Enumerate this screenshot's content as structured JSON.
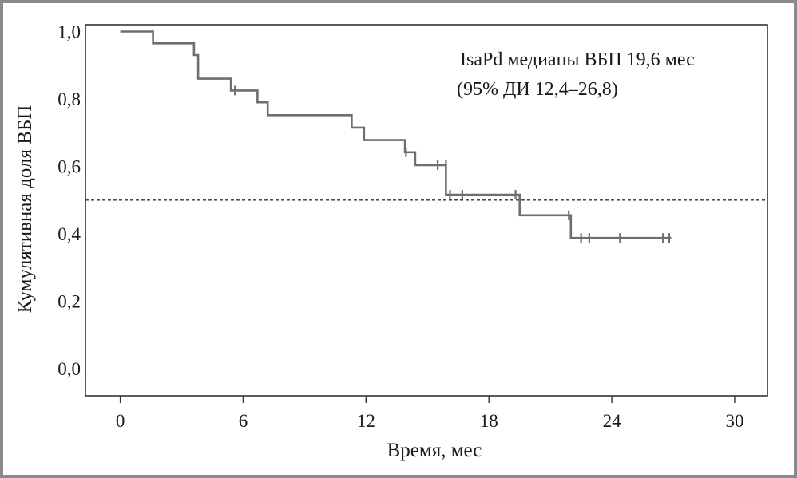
{
  "chart_data": {
    "type": "line",
    "subtype": "kaplan-meier",
    "xlabel": "Время, мес",
    "ylabel": "Кумулятивная доля ВБП",
    "xlim": [
      -1.7,
      31.6
    ],
    "ylim": [
      -0.08,
      1.02
    ],
    "x_ticks": [
      0,
      6,
      12,
      18,
      24,
      30
    ],
    "x_tick_labels": [
      "0",
      "6",
      "12",
      "18",
      "24",
      "30"
    ],
    "y_ticks": [
      0.0,
      0.2,
      0.4,
      0.6,
      0.8,
      1.0
    ],
    "y_tick_labels": [
      "0,0",
      "0,2",
      "0,4",
      "0,6",
      "0,8",
      "1,0"
    ],
    "reference_line": {
      "y": 0.5,
      "style": "dashed"
    },
    "annotation": {
      "line1": "IsaPd медианы ВБП 19,6 мес",
      "line2": "(95% ДИ 12,4–26,8)"
    },
    "series": [
      {
        "color": "#6e6e6e",
        "step_points": [
          [
            0,
            1.0
          ],
          [
            1.6,
            1.0
          ],
          [
            1.6,
            0.965
          ],
          [
            3.6,
            0.965
          ],
          [
            3.6,
            0.93
          ],
          [
            3.8,
            0.93
          ],
          [
            3.8,
            0.86
          ],
          [
            5.4,
            0.86
          ],
          [
            5.4,
            0.825
          ],
          [
            6.7,
            0.825
          ],
          [
            6.7,
            0.79
          ],
          [
            7.2,
            0.79
          ],
          [
            7.2,
            0.752
          ],
          [
            11.3,
            0.752
          ],
          [
            11.3,
            0.715
          ],
          [
            11.9,
            0.715
          ],
          [
            11.9,
            0.678
          ],
          [
            13.9,
            0.678
          ],
          [
            13.9,
            0.642
          ],
          [
            14.4,
            0.642
          ],
          [
            14.4,
            0.604
          ],
          [
            15.9,
            0.604
          ],
          [
            15.9,
            0.516
          ],
          [
            19.5,
            0.516
          ],
          [
            19.5,
            0.455
          ],
          [
            22.0,
            0.455
          ],
          [
            22.0,
            0.388
          ],
          [
            26.9,
            0.388
          ]
        ],
        "censored": [
          [
            5.6,
            0.825
          ],
          [
            13.95,
            0.642
          ],
          [
            15.5,
            0.604
          ],
          [
            15.9,
            0.604
          ],
          [
            16.1,
            0.516
          ],
          [
            16.7,
            0.516
          ],
          [
            19.3,
            0.516
          ],
          [
            21.9,
            0.455
          ],
          [
            22.5,
            0.388
          ],
          [
            22.9,
            0.388
          ],
          [
            24.4,
            0.388
          ],
          [
            26.5,
            0.388
          ],
          [
            26.8,
            0.388
          ]
        ]
      }
    ]
  }
}
